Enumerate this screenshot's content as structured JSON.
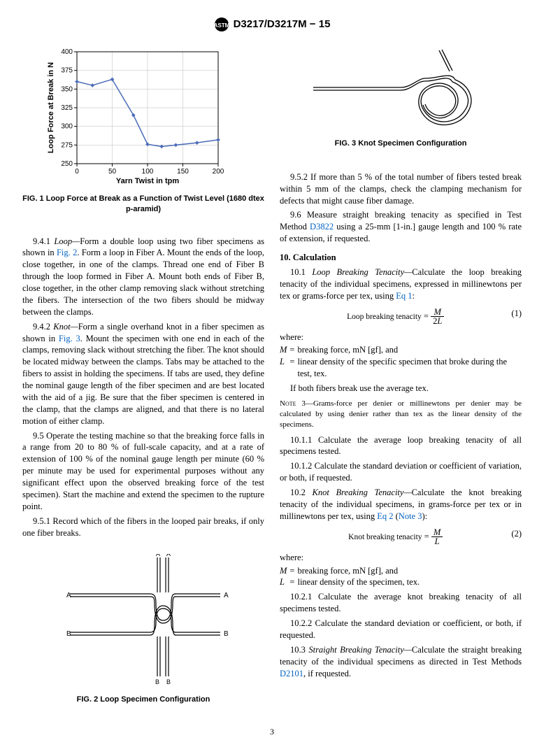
{
  "header": {
    "design": "D3217/D3217M − 15"
  },
  "chart": {
    "type": "line-scatter",
    "x_label": "Yarn Twist in tpm",
    "y_label": "Loop Force at Break in N",
    "xlim": [
      0,
      200
    ],
    "ylim": [
      250,
      400
    ],
    "xtick_step": 50,
    "ytick_step": 25,
    "grid_color": "#b8b8b8",
    "line_color": "#4b6cb7",
    "marker_color": "#4b6cb7",
    "marker_size": 4,
    "line_width": 1.5,
    "background": "#ffffff",
    "axis_font_size": 10,
    "label_font_size": 11,
    "points": [
      {
        "x": 0,
        "y": 360
      },
      {
        "x": 22,
        "y": 355
      },
      {
        "x": 50,
        "y": 363
      },
      {
        "x": 80,
        "y": 315
      },
      {
        "x": 100,
        "y": 276
      },
      {
        "x": 120,
        "y": 273
      },
      {
        "x": 140,
        "y": 275
      },
      {
        "x": 170,
        "y": 278
      },
      {
        "x": 200,
        "y": 282
      }
    ]
  },
  "fig1_caption": "FIG. 1  Loop Force at Break as a Function of Twist Level (1680 dtex p-aramid)",
  "fig2_caption": "FIG. 2  Loop Specimen Configuration",
  "fig3_caption": "FIG. 3  Knot Specimen Configuration",
  "s941_lead_num": "9.4.1 ",
  "s941_lead_em": "Loop—",
  "s941_a": "Form a double loop using two fiber specimens as shown in ",
  "s941_fig2": "Fig. 2",
  "s941_b": ". Form a loop in Fiber A. Mount the ends of the loop, close together, in one of the clamps. Thread one end of Fiber B through the loop formed in Fiber A. Mount both ends of Fiber B, close together, in the other clamp removing slack without stretching the fibers. The intersection of the two fibers should be midway between the clamps.",
  "s942_lead_num": "9.4.2 ",
  "s942_lead_em": "Knot—",
  "s942_a": "Form a single overhand knot in a fiber specimen as shown in ",
  "s942_fig3": "Fig. 3",
  "s942_b": ". Mount the specimen with one end in each of the clamps, removing slack without stretching the fiber. The knot should be located midway between the clamps. Tabs may be attached to the fibers to assist in holding the specimens. If tabs are used, they define the nominal gauge length of the fiber specimen and are best located with the aid of a jig. Be sure that the fiber specimen is centered in the clamp, that the clamps are aligned, and that there is no lateral motion of either clamp.",
  "s95": "9.5 Operate the testing machine so that the breaking force falls in a range from 20 to 80 % of full-scale capacity, and at a rate of extension of 100 % of the nominal gauge length per minute (60 % per minute may be used for experimental purposes without any significant effect upon the observed breaking force of the test specimen). Start the machine and extend the specimen to the rupture point.",
  "s951": "9.5.1 Record which of the fibers in the looped pair breaks, if only one fiber breaks.",
  "s952": "9.5.2 If more than 5 % of the total number of fibers tested break within 5 mm of the clamps, check the clamping mechanism for defects that might cause fiber damage.",
  "s96_a": "9.6 Measure straight breaking tenacity as specified in Test Method ",
  "s96_link": "D3822",
  "s96_b": " using a 25-mm [1-in.] gauge length and 100 % rate of extension, if requested.",
  "s10_head": "10. Calculation",
  "s101_num": "10.1 ",
  "s101_em": "Loop Breaking Tenacity—",
  "s101_a": "Calculate the loop breaking tenacity of the individual specimens, expressed in millinewtons per tex or grams-force per tex, using ",
  "s101_eq1": "Eq 1",
  "s101_colon": ":",
  "eq1_label": "Loop breaking tenacity",
  "eq1_equals": " = ",
  "eq1_num": "M",
  "eq1_den": "2L",
  "eq1_n": "(1)",
  "where": "where:",
  "defM_sym": "M",
  "defM_eq": "=",
  "defM_txt": "breaking force, mN [gf], and",
  "defL_sym": "L",
  "defL_eq": "=",
  "defL_txt_loop": "linear density of the specific specimen that broke during the test, tex.",
  "avg_note": "If both fibers break use the average tex.",
  "note3_lead": "Note",
  "note3_num": " 3—",
  "note3_body": "Grams-force per denier or millinewtons per denier may be calculated by using denier rather than tex as the linear density of the specimens.",
  "s1011": "10.1.1 Calculate the average loop breaking tenacity of all specimens tested.",
  "s1012": "10.1.2 Calculate the standard deviation or coefficient of variation, or both, if requested.",
  "s102_num": "10.2 ",
  "s102_em": "Knot Breaking Tenacity—",
  "s102_a": "Calculate the knot breaking tenacity of the individual specimens, in grams-force per tex or in millinewtons per tex, using ",
  "s102_eq2": "Eq 2",
  "s102_paren_open": " (",
  "s102_note3": "Note 3",
  "s102_paren_close": "):",
  "eq2_label": "Knot breaking tenacity",
  "eq2_num": "M",
  "eq2_den": "L",
  "eq2_n": "(2)",
  "defL_txt_knot": "linear density of the specimen, tex.",
  "s1021": "10.2.1 Calculate the average knot breaking tenacity of all specimens tested.",
  "s1022": "10.2.2 Calculate the standard deviation or coefficient, or both, if requested.",
  "s103_num": "10.3 ",
  "s103_em": "Straight Breaking Tenacity—",
  "s103_a": "Calculate the straight breaking tenacity of the individual specimens as directed in Test Methods ",
  "s103_link": "D2101",
  "s103_b": ", if requested.",
  "labels": {
    "A": "A",
    "B": "B"
  },
  "page": "3"
}
